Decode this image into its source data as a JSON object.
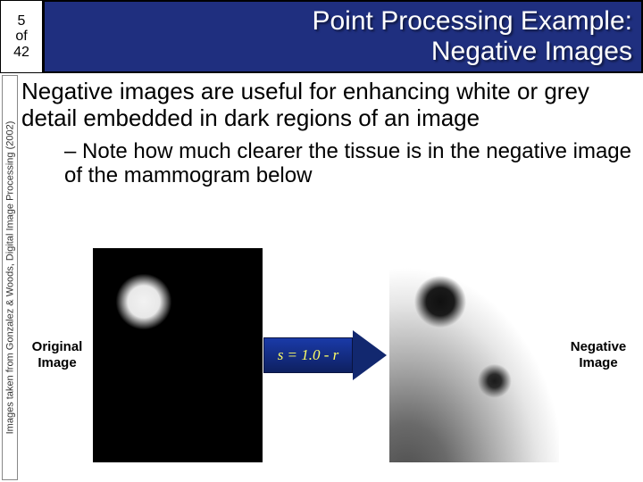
{
  "page": {
    "current": "5",
    "word_of": "of",
    "total": "42"
  },
  "title": {
    "line1": "Point Processing Example:",
    "line2": "Negative Images"
  },
  "sidecaption": "Images taken from Gonzalez & Woods, Digital Image Processing (2002)",
  "body": {
    "para": "Negative images are useful for enhancing white or grey detail embedded in dark regions of an image",
    "sub": "– Note how much clearer the tissue is in the negative image of the mammogram below"
  },
  "figure": {
    "left_caption_l1": "Original",
    "left_caption_l2": "Image",
    "right_caption_l1": "Negative",
    "right_caption_l2": "Image",
    "formula": "s = 1.0 - r"
  },
  "colors": {
    "title_bg": "#1f2f7f",
    "title_fg": "#ffffff",
    "arrow_fill_top": "#1a3aa8",
    "arrow_fill_bottom": "#0e2060",
    "formula_color": "#ffff66",
    "page_bg": "#ffffff",
    "text": "#000000"
  }
}
